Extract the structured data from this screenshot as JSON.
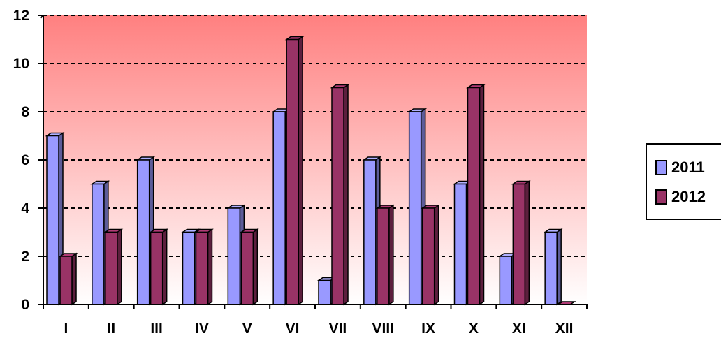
{
  "chart_data": {
    "type": "bar",
    "categories": [
      "I",
      "II",
      "III",
      "IV",
      "V",
      "VI",
      "VII",
      "VIII",
      "IX",
      "X",
      "XI",
      "XII"
    ],
    "series": [
      {
        "name": "2011",
        "values": [
          7,
          5,
          6,
          3,
          4,
          8,
          1,
          6,
          8,
          5,
          2,
          3
        ],
        "color": "#9999ff"
      },
      {
        "name": "2012",
        "values": [
          2,
          3,
          3,
          3,
          3,
          11,
          9,
          4,
          4,
          9,
          5,
          0
        ],
        "color": "#993366"
      }
    ],
    "y_ticks": [
      "0",
      "2",
      "4",
      "6",
      "8",
      "10",
      "12"
    ],
    "ylim": [
      0,
      12
    ],
    "grid": "horizontal-dashed",
    "legend_position": "right",
    "style": "3d-clustered-column",
    "plot_background": "gradient #ff8080 to #ffffff"
  }
}
